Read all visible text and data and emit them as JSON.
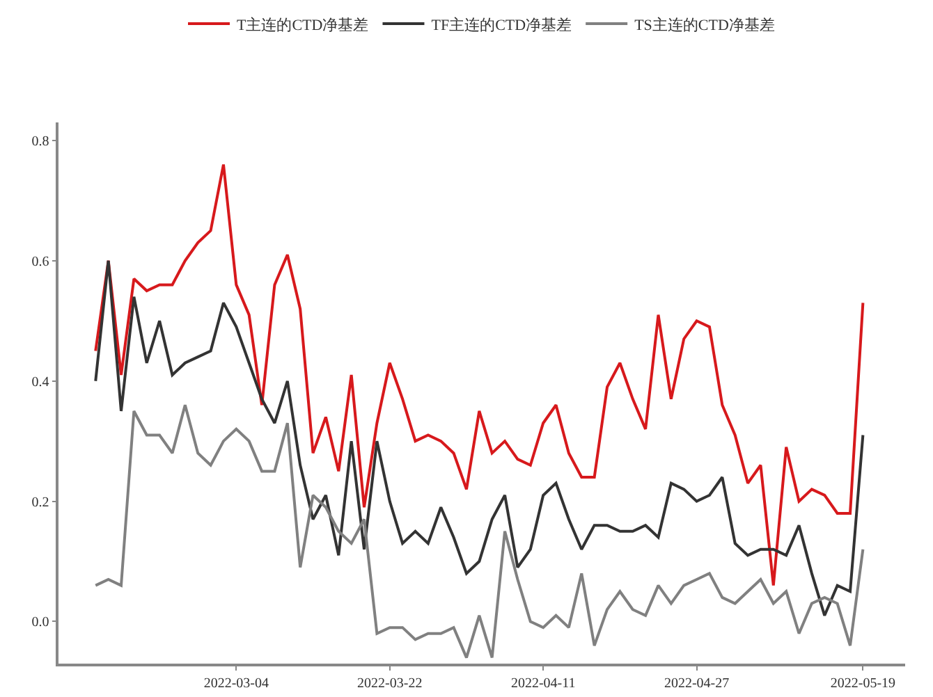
{
  "chart_data": {
    "type": "line",
    "categories": [
      null,
      null,
      null,
      null,
      null,
      null,
      null,
      null,
      null,
      null,
      null,
      "2022-03-04",
      null,
      null,
      null,
      null,
      null,
      null,
      null,
      null,
      null,
      null,
      null,
      "2022-03-22",
      null,
      null,
      null,
      null,
      null,
      null,
      null,
      null,
      null,
      null,
      null,
      "2022-04-11",
      null,
      null,
      null,
      null,
      null,
      null,
      null,
      null,
      null,
      null,
      null,
      "2022-04-27",
      null,
      null,
      null,
      null,
      null,
      null,
      null,
      null,
      null,
      null,
      null,
      null,
      "2022-05-19"
    ],
    "series": [
      {
        "name": "T主连的CTD净基差",
        "color": "#d7191c",
        "values": [
          0.45,
          0.6,
          0.41,
          0.57,
          0.55,
          0.56,
          0.56,
          0.6,
          0.63,
          0.65,
          0.76,
          0.56,
          0.51,
          0.36,
          0.56,
          0.61,
          0.52,
          0.28,
          0.34,
          0.25,
          0.41,
          0.19,
          0.33,
          0.43,
          0.37,
          0.3,
          0.31,
          0.3,
          0.28,
          0.22,
          0.35,
          0.28,
          0.3,
          0.27,
          0.26,
          0.33,
          0.36,
          0.28,
          0.24,
          0.24,
          0.39,
          0.43,
          0.37,
          0.32,
          0.51,
          0.37,
          0.47,
          0.5,
          0.49,
          0.36,
          0.31,
          0.23,
          0.26,
          0.06,
          0.29,
          0.2,
          0.22,
          0.21,
          0.18,
          0.18,
          0.53
        ]
      },
      {
        "name": "TF主连的CTD净基差",
        "color": "#333333",
        "values": [
          0.4,
          0.6,
          0.35,
          0.54,
          0.43,
          0.5,
          0.41,
          0.43,
          0.44,
          0.45,
          0.53,
          0.49,
          0.43,
          0.37,
          0.33,
          0.4,
          0.26,
          0.17,
          0.21,
          0.11,
          0.3,
          0.12,
          0.3,
          0.2,
          0.13,
          0.15,
          0.13,
          0.19,
          0.14,
          0.08,
          0.1,
          0.17,
          0.21,
          0.09,
          0.12,
          0.21,
          0.23,
          0.17,
          0.12,
          0.16,
          0.16,
          0.15,
          0.15,
          0.16,
          0.14,
          0.23,
          0.22,
          0.2,
          0.21,
          0.24,
          0.13,
          0.11,
          0.12,
          0.12,
          0.11,
          0.16,
          0.08,
          0.01,
          0.06,
          0.05,
          0.31
        ]
      },
      {
        "name": "TS主连的CTD净基差",
        "color": "#808080",
        "values": [
          0.06,
          0.07,
          0.06,
          0.35,
          0.31,
          0.31,
          0.28,
          0.36,
          0.28,
          0.26,
          0.3,
          0.32,
          0.3,
          0.25,
          0.25,
          0.33,
          0.09,
          0.21,
          0.19,
          0.15,
          0.13,
          0.17,
          -0.02,
          -0.01,
          -0.01,
          -0.03,
          -0.02,
          -0.02,
          -0.01,
          -0.06,
          0.01,
          -0.06,
          0.15,
          0.07,
          0.0,
          -0.01,
          0.01,
          -0.01,
          0.08,
          -0.04,
          0.02,
          0.05,
          0.02,
          0.01,
          0.06,
          0.03,
          0.06,
          0.07,
          0.08,
          0.04,
          0.03,
          0.05,
          0.07,
          0.03,
          0.05,
          -0.02,
          0.03,
          0.04,
          0.03,
          -0.04,
          0.12
        ]
      }
    ],
    "ylim": [
      -0.07,
      0.83
    ],
    "yticks": [
      {
        "value": 0,
        "label": "0.0"
      },
      0.2,
      0.4,
      0.6,
      0.8
    ],
    "grid": false,
    "legend": "top",
    "line_style": "solid",
    "marker": "none"
  }
}
